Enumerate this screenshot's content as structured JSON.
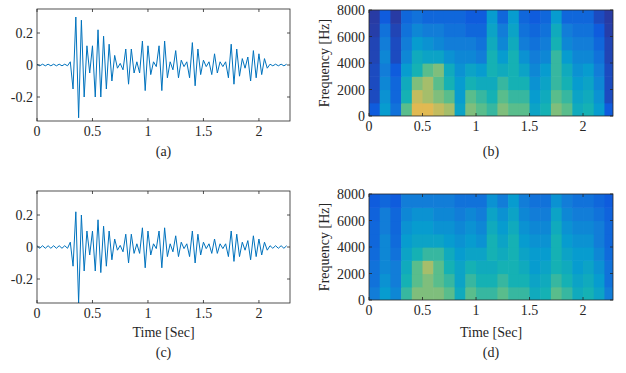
{
  "chart_data": [
    {
      "type": "line",
      "title": "(a)",
      "x": [
        0,
        0.025,
        0.05,
        0.075,
        0.1,
        0.125,
        0.15,
        0.175,
        0.2,
        0.225,
        0.25,
        0.275,
        0.3,
        0.325,
        0.35,
        0.375,
        0.4,
        0.425,
        0.45,
        0.475,
        0.5,
        0.525,
        0.55,
        0.575,
        0.6,
        0.625,
        0.65,
        0.675,
        0.7,
        0.725,
        0.75,
        0.775,
        0.8,
        0.825,
        0.85,
        0.875,
        0.9,
        0.925,
        0.95,
        0.975,
        1,
        1.025,
        1.05,
        1.075,
        1.1,
        1.125,
        1.15,
        1.175,
        1.2,
        1.225,
        1.25,
        1.275,
        1.3,
        1.325,
        1.35,
        1.375,
        1.4,
        1.425,
        1.45,
        1.475,
        1.5,
        1.525,
        1.55,
        1.575,
        1.6,
        1.625,
        1.65,
        1.675,
        1.7,
        1.725,
        1.75,
        1.775,
        1.8,
        1.825,
        1.85,
        1.875,
        1.9,
        1.925,
        1.95,
        1.975,
        2,
        2.025,
        2.05,
        2.075,
        2.1,
        2.125,
        2.15,
        2.175,
        2.2,
        2.225,
        2.25
      ],
      "series": [
        {
          "color": "#0072bd",
          "values": [
            0.005,
            -0.005,
            0.005,
            -0.005,
            0.005,
            -0.005,
            0.005,
            -0.005,
            0.005,
            -0.005,
            0.005,
            -0.005,
            0.02,
            -0.15,
            0.3,
            -0.33,
            0.28,
            -0.2,
            0.12,
            -0.05,
            0.12,
            -0.2,
            0.22,
            -0.2,
            0.18,
            -0.15,
            0.13,
            -0.1,
            0.06,
            -0.02,
            0.01,
            -0.03,
            0.1,
            -0.12,
            0.1,
            -0.05,
            0.02,
            -0.05,
            0.15,
            -0.16,
            0.12,
            -0.06,
            0.02,
            -0.01,
            0.12,
            -0.16,
            0.15,
            -0.08,
            0.02,
            -0.03,
            0.09,
            -0.08,
            0.03,
            -0.01,
            0.02,
            -0.08,
            0.14,
            -0.13,
            0.1,
            -0.06,
            0.03,
            -0.01,
            0.02,
            -0.06,
            0.07,
            -0.05,
            0.02,
            -0.01,
            0.02,
            -0.08,
            0.13,
            -0.12,
            0.1,
            -0.07,
            0.04,
            -0.02,
            0.05,
            -0.1,
            0.09,
            -0.08,
            0.07,
            -0.06,
            0.04,
            -0.02,
            0.005,
            -0.005,
            0.005,
            -0.005,
            0.005,
            -0.005,
            0.005
          ]
        }
      ],
      "xlim": [
        0,
        2.28
      ],
      "xticks": [
        0,
        0.5,
        1,
        1.5,
        2
      ],
      "ylim": [
        -0.35,
        0.35
      ],
      "yticks": [
        -0.2,
        0,
        0.2
      ]
    },
    {
      "type": "heatmap",
      "title": "(b)",
      "y_label": "Frequency [Hz]",
      "xbins": [
        0,
        0.1,
        0.2,
        0.3,
        0.4,
        0.5,
        0.6,
        0.7,
        0.8,
        0.9,
        1,
        1.1,
        1.2,
        1.3,
        1.4,
        1.5,
        1.6,
        1.7,
        1.8,
        1.9,
        2,
        2.1,
        2.2,
        2.3
      ],
      "ybins": [
        0,
        1000,
        2000,
        3000,
        4000,
        5000,
        6000,
        7000,
        8000
      ],
      "cells": [
        [
          0.15,
          0.45,
          0.25,
          0.7,
          0.9,
          0.9,
          0.85,
          0.8,
          0.5,
          0.75,
          0.7,
          0.65,
          0.75,
          0.7,
          0.7,
          0.5,
          0.6,
          0.75,
          0.7,
          0.55,
          0.6,
          0.45,
          0.15
        ],
        [
          0.1,
          0.4,
          0.2,
          0.6,
          0.85,
          0.8,
          0.75,
          0.7,
          0.45,
          0.7,
          0.65,
          0.6,
          0.7,
          0.65,
          0.65,
          0.45,
          0.55,
          0.7,
          0.65,
          0.5,
          0.55,
          0.4,
          0.1
        ],
        [
          0.1,
          0.35,
          0.2,
          0.55,
          0.75,
          0.8,
          0.7,
          0.6,
          0.45,
          0.6,
          0.55,
          0.55,
          0.65,
          0.6,
          0.6,
          0.4,
          0.5,
          0.65,
          0.6,
          0.45,
          0.5,
          0.35,
          0.1
        ],
        [
          0.1,
          0.3,
          0.15,
          0.45,
          0.6,
          0.7,
          0.75,
          0.55,
          0.4,
          0.5,
          0.45,
          0.6,
          0.55,
          0.6,
          0.5,
          0.35,
          0.45,
          0.65,
          0.55,
          0.4,
          0.45,
          0.3,
          0.1
        ],
        [
          0.08,
          0.35,
          0.1,
          0.35,
          0.55,
          0.5,
          0.5,
          0.4,
          0.35,
          0.35,
          0.3,
          0.6,
          0.45,
          0.6,
          0.4,
          0.3,
          0.35,
          0.65,
          0.45,
          0.35,
          0.35,
          0.25,
          0.08
        ],
        [
          0.08,
          0.3,
          0.1,
          0.3,
          0.45,
          0.4,
          0.35,
          0.3,
          0.3,
          0.3,
          0.25,
          0.55,
          0.35,
          0.55,
          0.3,
          0.25,
          0.3,
          0.6,
          0.35,
          0.3,
          0.3,
          0.2,
          0.08
        ],
        [
          0.06,
          0.25,
          0.08,
          0.25,
          0.35,
          0.3,
          0.3,
          0.25,
          0.25,
          0.2,
          0.2,
          0.5,
          0.3,
          0.5,
          0.25,
          0.2,
          0.25,
          0.55,
          0.3,
          0.25,
          0.25,
          0.15,
          0.06
        ],
        [
          0.05,
          0.15,
          0.05,
          0.2,
          0.25,
          0.2,
          0.2,
          0.2,
          0.2,
          0.15,
          0.15,
          0.45,
          0.2,
          0.45,
          0.2,
          0.15,
          0.2,
          0.45,
          0.2,
          0.2,
          0.2,
          0.1,
          0.05
        ]
      ],
      "clim": [
        0,
        1
      ],
      "xlim": [
        0,
        2.28
      ],
      "xticks": [
        0,
        0.5,
        1,
        1.5,
        2
      ],
      "ylim": [
        0,
        8000
      ],
      "yticks": [
        0,
        2000,
        4000,
        6000,
        8000
      ]
    },
    {
      "type": "line",
      "title": "(c)",
      "x_label": "Time [Sec]",
      "x": [
        0,
        0.025,
        0.05,
        0.075,
        0.1,
        0.125,
        0.15,
        0.175,
        0.2,
        0.225,
        0.25,
        0.275,
        0.3,
        0.325,
        0.35,
        0.375,
        0.4,
        0.425,
        0.45,
        0.475,
        0.5,
        0.525,
        0.55,
        0.575,
        0.6,
        0.625,
        0.65,
        0.675,
        0.7,
        0.725,
        0.75,
        0.775,
        0.8,
        0.825,
        0.85,
        0.875,
        0.9,
        0.925,
        0.95,
        0.975,
        1,
        1.025,
        1.05,
        1.075,
        1.1,
        1.125,
        1.15,
        1.175,
        1.2,
        1.225,
        1.25,
        1.275,
        1.3,
        1.325,
        1.35,
        1.375,
        1.4,
        1.425,
        1.45,
        1.475,
        1.5,
        1.525,
        1.55,
        1.575,
        1.6,
        1.625,
        1.65,
        1.675,
        1.7,
        1.725,
        1.75,
        1.775,
        1.8,
        1.825,
        1.85,
        1.875,
        1.9,
        1.925,
        1.95,
        1.975,
        2,
        2.025,
        2.05,
        2.075,
        2.1,
        2.125,
        2.15,
        2.175,
        2.2,
        2.225,
        2.25
      ],
      "series": [
        {
          "color": "#0072bd",
          "values": [
            0.008,
            -0.008,
            0.008,
            -0.008,
            0.008,
            -0.008,
            0.008,
            -0.008,
            0.008,
            -0.008,
            0.008,
            -0.008,
            0.03,
            -0.12,
            0.22,
            -0.35,
            0.2,
            -0.15,
            0.1,
            -0.05,
            0.1,
            -0.15,
            0.17,
            -0.16,
            0.13,
            -0.12,
            0.1,
            -0.08,
            0.05,
            -0.02,
            0.01,
            -0.03,
            0.08,
            -0.1,
            0.08,
            -0.04,
            0.02,
            -0.04,
            0.12,
            -0.13,
            0.1,
            -0.05,
            0.02,
            -0.01,
            0.1,
            -0.13,
            0.12,
            -0.06,
            0.02,
            -0.03,
            0.07,
            -0.06,
            0.03,
            -0.01,
            0.02,
            -0.06,
            0.1,
            -0.1,
            0.08,
            -0.05,
            0.03,
            -0.01,
            0.02,
            -0.04,
            0.05,
            -0.04,
            0.02,
            -0.01,
            0.02,
            -0.06,
            0.1,
            -0.09,
            0.08,
            -0.06,
            0.03,
            -0.02,
            0.04,
            -0.08,
            0.07,
            -0.06,
            0.05,
            -0.05,
            0.03,
            -0.02,
            0.008,
            -0.008,
            0.008,
            -0.008,
            0.008,
            -0.008,
            0.008
          ]
        }
      ],
      "xlim": [
        0,
        2.28
      ],
      "xticks": [
        0,
        0.5,
        1,
        1.5,
        2
      ],
      "ylim": [
        -0.35,
        0.35
      ],
      "yticks": [
        -0.2,
        0,
        0.2
      ]
    },
    {
      "type": "heatmap",
      "title": "(d)",
      "x_label": "Time [Sec]",
      "y_label": "Frequency [Hz]",
      "xbins": [
        0,
        0.1,
        0.2,
        0.3,
        0.4,
        0.5,
        0.6,
        0.7,
        0.8,
        0.9,
        1,
        1.1,
        1.2,
        1.3,
        1.4,
        1.5,
        1.6,
        1.7,
        1.8,
        1.9,
        2,
        2.1,
        2.2,
        2.3
      ],
      "ybins": [
        0,
        1000,
        2000,
        3000,
        4000,
        5000,
        6000,
        7000,
        8000
      ],
      "cells": [
        [
          0.3,
          0.45,
          0.35,
          0.65,
          0.75,
          0.75,
          0.75,
          0.7,
          0.55,
          0.7,
          0.65,
          0.65,
          0.7,
          0.65,
          0.65,
          0.55,
          0.6,
          0.7,
          0.65,
          0.55,
          0.6,
          0.5,
          0.3
        ],
        [
          0.25,
          0.4,
          0.3,
          0.6,
          0.7,
          0.75,
          0.7,
          0.65,
          0.5,
          0.65,
          0.6,
          0.6,
          0.65,
          0.6,
          0.6,
          0.5,
          0.55,
          0.65,
          0.6,
          0.5,
          0.55,
          0.45,
          0.25
        ],
        [
          0.25,
          0.35,
          0.3,
          0.55,
          0.7,
          0.8,
          0.7,
          0.6,
          0.5,
          0.6,
          0.55,
          0.55,
          0.6,
          0.6,
          0.55,
          0.45,
          0.5,
          0.6,
          0.55,
          0.45,
          0.5,
          0.4,
          0.25
        ],
        [
          0.22,
          0.35,
          0.25,
          0.5,
          0.6,
          0.65,
          0.65,
          0.55,
          0.45,
          0.5,
          0.5,
          0.6,
          0.55,
          0.6,
          0.5,
          0.45,
          0.45,
          0.6,
          0.5,
          0.45,
          0.45,
          0.35,
          0.22
        ],
        [
          0.2,
          0.35,
          0.22,
          0.45,
          0.5,
          0.5,
          0.5,
          0.45,
          0.4,
          0.45,
          0.4,
          0.6,
          0.5,
          0.6,
          0.45,
          0.4,
          0.4,
          0.6,
          0.45,
          0.4,
          0.4,
          0.3,
          0.2
        ],
        [
          0.2,
          0.3,
          0.2,
          0.4,
          0.45,
          0.45,
          0.4,
          0.4,
          0.35,
          0.4,
          0.35,
          0.55,
          0.45,
          0.55,
          0.4,
          0.35,
          0.35,
          0.55,
          0.4,
          0.35,
          0.35,
          0.3,
          0.2
        ],
        [
          0.18,
          0.3,
          0.2,
          0.35,
          0.4,
          0.4,
          0.35,
          0.35,
          0.3,
          0.35,
          0.3,
          0.5,
          0.4,
          0.5,
          0.35,
          0.3,
          0.3,
          0.5,
          0.35,
          0.3,
          0.3,
          0.25,
          0.18
        ],
        [
          0.15,
          0.2,
          0.15,
          0.3,
          0.3,
          0.3,
          0.3,
          0.3,
          0.25,
          0.25,
          0.25,
          0.4,
          0.3,
          0.45,
          0.3,
          0.25,
          0.25,
          0.4,
          0.3,
          0.25,
          0.25,
          0.2,
          0.15
        ]
      ],
      "clim": [
        0,
        1
      ],
      "xlim": [
        0,
        2.28
      ],
      "xticks": [
        0,
        0.5,
        1,
        1.5,
        2
      ],
      "ylim": [
        0,
        8000
      ],
      "yticks": [
        0,
        2000,
        4000,
        6000,
        8000
      ]
    }
  ]
}
